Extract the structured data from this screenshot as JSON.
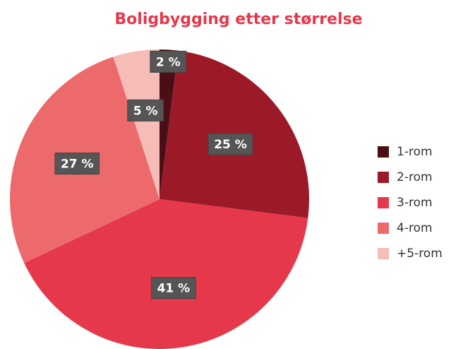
{
  "chart_data": {
    "type": "pie",
    "title": "Boligbygging etter størrelse",
    "categories": [
      "1-rom",
      "2-rom",
      "3-rom",
      "4-rom",
      "+5-rom"
    ],
    "values": [
      2,
      25,
      41,
      27,
      5
    ],
    "value_labels": [
      "2 %",
      "25 %",
      "41 %",
      "27 %",
      "5 %"
    ],
    "colors": [
      "#4a0f16",
      "#9c1a27",
      "#e5384a",
      "#ec6a6c",
      "#f6bcb7"
    ],
    "legend": "right"
  }
}
